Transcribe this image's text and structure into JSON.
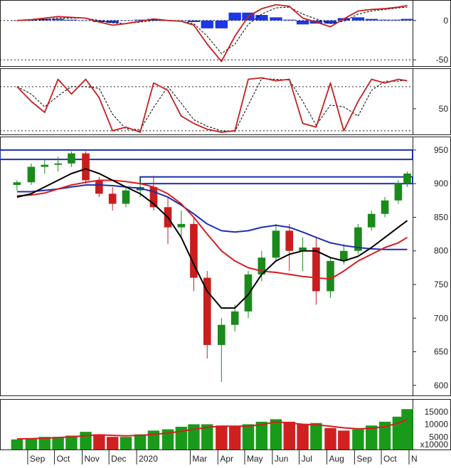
{
  "colors": {
    "price_up": "#1a8a1a",
    "price_down": "#c81e1e",
    "volume_up": "#1a9a1a",
    "volume_down": "#d02020",
    "ma_red": "#d81e1e",
    "ma_black": "#000000",
    "ma_blue": "#1c2fb4",
    "resistance_box": "#1c2fb4",
    "macd_hist": "#1c37e6",
    "macd_line": "#c81e1e",
    "signal_line": "#000000",
    "rsi_line": "#c81e1e"
  },
  "chart_data": [
    {
      "type": "line",
      "panel": "macd",
      "ylim": [
        -58,
        26
      ],
      "ticks": [
        0,
        -50
      ],
      "tick_labels": [
        "0",
        "-50"
      ],
      "x": [
        "2019-08-20",
        "2019-09-05",
        "2019-09-20",
        "2019-10-05",
        "2019-10-20",
        "2019-11-05",
        "2019-11-20",
        "2019-12-05",
        "2019-12-20",
        "2020-01-05",
        "2020-01-20",
        "2020-02-05",
        "2020-02-20",
        "2020-03-05",
        "2020-03-20",
        "2020-04-05",
        "2020-04-20",
        "2020-05-05",
        "2020-05-20",
        "2020-06-05",
        "2020-06-20",
        "2020-07-05",
        "2020-07-20",
        "2020-08-05",
        "2020-08-20",
        "2020-09-05",
        "2020-09-20",
        "2020-10-05",
        "2020-10-20",
        "2020-10-30"
      ],
      "series": [
        {
          "role": "macd",
          "values": [
            0,
            1,
            3,
            5,
            4,
            3,
            -2,
            -6,
            -4,
            -1,
            2,
            0,
            -1,
            -6,
            -30,
            -52,
            -20,
            5,
            15,
            20,
            18,
            3,
            -2,
            -8,
            2,
            12,
            14,
            15,
            17,
            19
          ]
        },
        {
          "role": "signal",
          "values": [
            0,
            0,
            1,
            3,
            3,
            3,
            0,
            -3,
            -4,
            -2,
            0,
            0,
            -1,
            -4,
            -20,
            -42,
            -30,
            -5,
            8,
            16,
            17,
            8,
            2,
            -4,
            -1,
            8,
            12,
            14,
            16,
            17
          ]
        },
        {
          "role": "histogram",
          "values": [
            0,
            1,
            2,
            2,
            1,
            0,
            -2,
            -3,
            0,
            1,
            2,
            0,
            0,
            -2,
            -10,
            -10,
            10,
            10,
            7,
            4,
            1,
            -5,
            -4,
            -4,
            3,
            4,
            2,
            1,
            1,
            2
          ]
        }
      ]
    },
    {
      "type": "line",
      "panel": "rsi",
      "ylim": [
        15,
        105
      ],
      "ticks": [
        50
      ],
      "tick_labels": [
        "50"
      ],
      "reference_lines": [
        80,
        20
      ],
      "x": [
        "2019-08-20",
        "2019-09-05",
        "2019-09-20",
        "2019-10-05",
        "2019-10-20",
        "2019-11-05",
        "2019-11-20",
        "2019-12-05",
        "2019-12-20",
        "2020-01-05",
        "2020-01-20",
        "2020-02-05",
        "2020-02-20",
        "2020-03-05",
        "2020-03-20",
        "2020-04-05",
        "2020-04-20",
        "2020-05-05",
        "2020-05-20",
        "2020-06-05",
        "2020-06-20",
        "2020-07-05",
        "2020-07-20",
        "2020-08-05",
        "2020-08-20",
        "2020-09-05",
        "2020-09-20",
        "2020-10-05",
        "2020-10-20",
        "2020-10-30"
      ],
      "series": [
        {
          "role": "rsi",
          "values": [
            80,
            60,
            45,
            90,
            70,
            90,
            65,
            20,
            25,
            18,
            85,
            75,
            40,
            30,
            22,
            18,
            20,
            90,
            92,
            88,
            90,
            30,
            25,
            85,
            20,
            60,
            90,
            85,
            90,
            88
          ]
        }
      ]
    },
    {
      "type": "candlestick",
      "panel": "price",
      "ylim": [
        585,
        970
      ],
      "ticks": [
        950,
        900,
        850,
        800,
        750,
        700,
        650,
        600
      ],
      "tick_labels": [
        "950",
        "900",
        "850",
        "800",
        "750",
        "700",
        "650",
        "600"
      ],
      "resistance_zones": [
        {
          "from": "2019-08-01",
          "to": "2020-11-05",
          "low": 936,
          "high": 950
        },
        {
          "from": "2020-01-05",
          "to": "2020-11-05",
          "low": 900,
          "high": 910
        }
      ],
      "x": [
        "2019-08-20",
        "2019-09-05",
        "2019-09-20",
        "2019-10-05",
        "2019-10-20",
        "2019-11-05",
        "2019-11-20",
        "2019-12-05",
        "2019-12-20",
        "2020-01-05",
        "2020-01-20",
        "2020-02-05",
        "2020-02-20",
        "2020-03-05",
        "2020-03-20",
        "2020-04-05",
        "2020-04-20",
        "2020-05-05",
        "2020-05-20",
        "2020-06-05",
        "2020-06-20",
        "2020-07-05",
        "2020-07-20",
        "2020-08-05",
        "2020-08-20",
        "2020-09-05",
        "2020-09-20",
        "2020-10-05",
        "2020-10-20",
        "2020-10-30"
      ],
      "ohlc": [
        [
          898,
          905,
          890,
          902
        ],
        [
          902,
          930,
          898,
          925
        ],
        [
          925,
          935,
          915,
          928
        ],
        [
          928,
          940,
          918,
          930
        ],
        [
          930,
          948,
          925,
          945
        ],
        [
          945,
          948,
          900,
          905
        ],
        [
          905,
          910,
          880,
          885
        ],
        [
          885,
          895,
          860,
          870
        ],
        [
          870,
          895,
          865,
          890
        ],
        [
          890,
          910,
          880,
          895
        ],
        [
          895,
          912,
          860,
          865
        ],
        [
          865,
          880,
          810,
          835
        ],
        [
          835,
          860,
          820,
          840
        ],
        [
          840,
          850,
          740,
          760
        ],
        [
          760,
          770,
          640,
          660
        ],
        [
          660,
          700,
          605,
          690
        ],
        [
          690,
          720,
          680,
          710
        ],
        [
          710,
          770,
          700,
          765
        ],
        [
          765,
          800,
          755,
          790
        ],
        [
          790,
          840,
          785,
          830
        ],
        [
          830,
          840,
          770,
          800
        ],
        [
          800,
          820,
          770,
          805
        ],
        [
          805,
          820,
          720,
          740
        ],
        [
          740,
          790,
          730,
          785
        ],
        [
          785,
          810,
          780,
          800
        ],
        [
          800,
          840,
          795,
          835
        ],
        [
          835,
          860,
          830,
          855
        ],
        [
          855,
          880,
          850,
          875
        ],
        [
          875,
          905,
          870,
          900
        ],
        [
          900,
          918,
          895,
          915
        ]
      ],
      "series": [
        {
          "role": "ma_black",
          "values": [
            880,
            885,
            895,
            905,
            915,
            922,
            915,
            905,
            895,
            885,
            870,
            850,
            820,
            780,
            740,
            715,
            715,
            735,
            765,
            785,
            795,
            800,
            800,
            790,
            785,
            792,
            805,
            820,
            835,
            845
          ]
        },
        {
          "role": "ma_red",
          "values": [
            882,
            883,
            886,
            892,
            898,
            902,
            905,
            905,
            903,
            900,
            895,
            885,
            870,
            850,
            825,
            800,
            785,
            775,
            770,
            768,
            765,
            762,
            760,
            758,
            770,
            785,
            795,
            805,
            812,
            820
          ]
        },
        {
          "role": "ma_blue",
          "values": [
            888,
            888,
            890,
            892,
            895,
            898,
            898,
            897,
            895,
            893,
            888,
            880,
            868,
            855,
            840,
            830,
            828,
            830,
            835,
            838,
            835,
            828,
            820,
            812,
            808,
            805,
            803,
            802,
            802,
            802
          ]
        }
      ]
    },
    {
      "type": "bar",
      "panel": "volume",
      "ylim": [
        0,
        20000
      ],
      "ticks": [
        15000,
        10000,
        5000
      ],
      "tick_labels": [
        "15000",
        "10000",
        "5000"
      ],
      "unit_label": "x10000",
      "x": [
        "2019-08-20",
        "2019-09-05",
        "2019-09-20",
        "2019-10-05",
        "2019-10-20",
        "2019-11-05",
        "2019-11-20",
        "2019-12-05",
        "2019-12-20",
        "2020-01-05",
        "2020-01-20",
        "2020-02-05",
        "2020-02-20",
        "2020-03-05",
        "2020-03-20",
        "2020-04-05",
        "2020-04-20",
        "2020-05-05",
        "2020-05-20",
        "2020-06-05",
        "2020-06-20",
        "2020-07-05",
        "2020-07-20",
        "2020-08-05",
        "2020-08-20",
        "2020-09-05",
        "2020-09-20",
        "2020-10-05",
        "2020-10-20",
        "2020-10-30"
      ],
      "series": [
        {
          "role": "volume",
          "values": [
            4000,
            4500,
            5000,
            5000,
            5500,
            7000,
            6000,
            5000,
            5000,
            6000,
            7500,
            8000,
            9000,
            10000,
            10000,
            9500,
            9000,
            10000,
            11000,
            12000,
            11000,
            10000,
            10500,
            8500,
            7500,
            8000,
            9500,
            11000,
            13000,
            16000
          ]
        },
        {
          "role": "volume_ma",
          "values": [
            4200,
            4300,
            4500,
            4700,
            5000,
            5500,
            5800,
            5600,
            5400,
            5600,
            6000,
            6500,
            7200,
            8000,
            8800,
            9200,
            9200,
            9300,
            9800,
            11000,
            10500,
            10000,
            9800,
            9200,
            8600,
            8200,
            8400,
            9000,
            10500,
            12000
          ]
        }
      ],
      "x_ticks": [
        {
          "date": "2019-09-01",
          "label": "Sep"
        },
        {
          "date": "2019-10-01",
          "label": "Oct"
        },
        {
          "date": "2019-11-01",
          "label": "Nov"
        },
        {
          "date": "2019-12-01",
          "label": "Dec"
        },
        {
          "date": "2020-01-01",
          "label": "2020"
        },
        {
          "date": "2020-03-01",
          "label": "Mar"
        },
        {
          "date": "2020-04-01",
          "label": "Apr"
        },
        {
          "date": "2020-05-01",
          "label": "May"
        },
        {
          "date": "2020-06-01",
          "label": "Jun"
        },
        {
          "date": "2020-07-01",
          "label": "Jul"
        },
        {
          "date": "2020-08-01",
          "label": "Aug"
        },
        {
          "date": "2020-09-01",
          "label": "Sep"
        },
        {
          "date": "2020-10-01",
          "label": "Oct"
        },
        {
          "date": "2020-11-01",
          "label": "N"
        }
      ]
    }
  ]
}
